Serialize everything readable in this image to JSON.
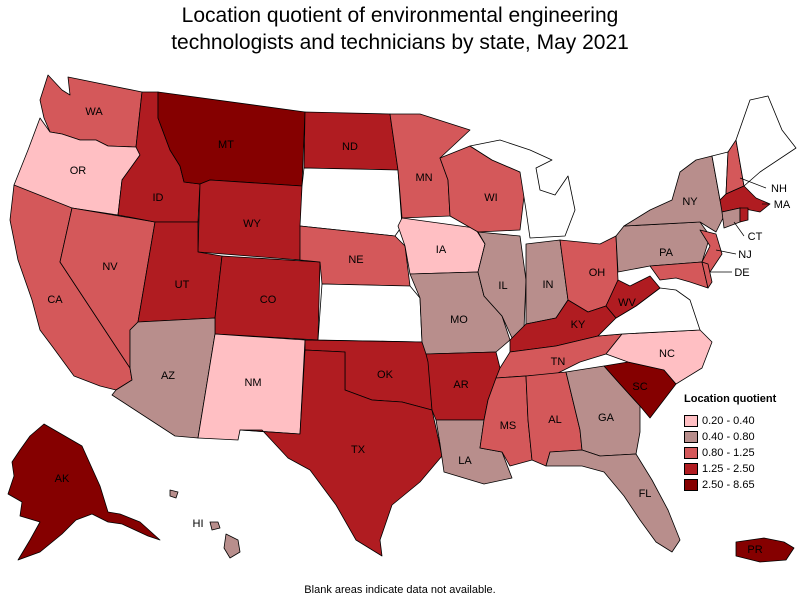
{
  "title": "Location quotient of environmental engineering technologists and technicians by state, May 2021",
  "note": "Blank areas indicate data not available.",
  "legend": {
    "title": "Location quotient",
    "bins": [
      {
        "label": "0.20 - 0.40",
        "color": "#ffbfc3"
      },
      {
        "label": "0.40 - 0.80",
        "color": "#b88e8c"
      },
      {
        "label": "0.80 - 1.25",
        "color": "#d4585a"
      },
      {
        "label": "1.25 - 2.50",
        "color": "#b01c21"
      },
      {
        "label": "2.50 - 8.65",
        "color": "#850000"
      }
    ]
  },
  "no_data_color": "#ffffff",
  "states": [
    {
      "abbr": "WA",
      "bin": 2
    },
    {
      "abbr": "OR",
      "bin": 0
    },
    {
      "abbr": "CA",
      "bin": 2
    },
    {
      "abbr": "NV",
      "bin": 2
    },
    {
      "abbr": "ID",
      "bin": 3
    },
    {
      "abbr": "MT",
      "bin": 4
    },
    {
      "abbr": "WY",
      "bin": 3
    },
    {
      "abbr": "UT",
      "bin": 3
    },
    {
      "abbr": "CO",
      "bin": 3
    },
    {
      "abbr": "AZ",
      "bin": 1
    },
    {
      "abbr": "NM",
      "bin": 0
    },
    {
      "abbr": "ND",
      "bin": 3
    },
    {
      "abbr": "SD",
      "bin": null
    },
    {
      "abbr": "NE",
      "bin": 2
    },
    {
      "abbr": "KS",
      "bin": null
    },
    {
      "abbr": "OK",
      "bin": 3
    },
    {
      "abbr": "TX",
      "bin": 3
    },
    {
      "abbr": "MN",
      "bin": 2
    },
    {
      "abbr": "IA",
      "bin": 0
    },
    {
      "abbr": "MO",
      "bin": 1
    },
    {
      "abbr": "AR",
      "bin": 3
    },
    {
      "abbr": "LA",
      "bin": 1
    },
    {
      "abbr": "WI",
      "bin": 2
    },
    {
      "abbr": "IL",
      "bin": 1
    },
    {
      "abbr": "MI",
      "bin": null
    },
    {
      "abbr": "IN",
      "bin": 1
    },
    {
      "abbr": "OH",
      "bin": 2
    },
    {
      "abbr": "KY",
      "bin": 3
    },
    {
      "abbr": "TN",
      "bin": 2
    },
    {
      "abbr": "MS",
      "bin": 2
    },
    {
      "abbr": "AL",
      "bin": 2
    },
    {
      "abbr": "GA",
      "bin": 1
    },
    {
      "abbr": "FL",
      "bin": 1
    },
    {
      "abbr": "SC",
      "bin": 4
    },
    {
      "abbr": "NC",
      "bin": 0
    },
    {
      "abbr": "VA",
      "bin": null
    },
    {
      "abbr": "WV",
      "bin": 3
    },
    {
      "abbr": "PA",
      "bin": 1
    },
    {
      "abbr": "NY",
      "bin": 1
    },
    {
      "abbr": "VT",
      "bin": null
    },
    {
      "abbr": "NH",
      "bin": 2
    },
    {
      "abbr": "ME",
      "bin": null
    },
    {
      "abbr": "MA",
      "bin": 3
    },
    {
      "abbr": "RI",
      "bin": 3
    },
    {
      "abbr": "CT",
      "bin": 1
    },
    {
      "abbr": "NJ",
      "bin": 2
    },
    {
      "abbr": "DE",
      "bin": 2
    },
    {
      "abbr": "MD",
      "bin": 2
    },
    {
      "abbr": "DC",
      "bin": null
    },
    {
      "abbr": "AK",
      "bin": 4
    },
    {
      "abbr": "HI",
      "bin": 1
    },
    {
      "abbr": "PR",
      "bin": 4
    }
  ]
}
